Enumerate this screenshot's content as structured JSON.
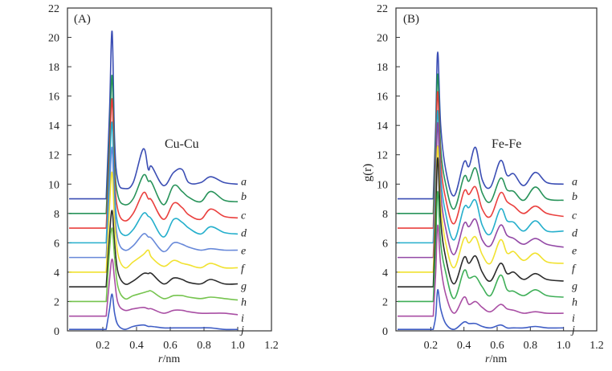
{
  "chart_data": [
    {
      "type": "line",
      "panel_label": "(A)",
      "annotation": "Cu-Cu",
      "xlabel_italic": "r",
      "xlabel_unit": "/nm",
      "ylabel": "",
      "xlim": [
        0,
        1.2
      ],
      "ylim": [
        0,
        22
      ],
      "xticks": [
        "0.2",
        "0.4",
        "0.6",
        "0.8",
        "1.0",
        "1.2"
      ],
      "xtick_values": [
        0.2,
        0.4,
        0.6,
        0.8,
        1.0,
        1.2
      ],
      "yticks": [
        "0",
        "2",
        "4",
        "6",
        "8",
        "10",
        "12",
        "14",
        "16",
        "18",
        "20",
        "22"
      ],
      "grid": false,
      "x": [
        0,
        0.22,
        0.24,
        0.255,
        0.27,
        0.29,
        0.33,
        0.38,
        0.44,
        0.47,
        0.49,
        0.56,
        0.62,
        0.67,
        0.71,
        0.78,
        0.84,
        0.92,
        1.0
      ],
      "series": [
        {
          "name": "a",
          "color": "#2a3fae",
          "values": [
            9,
            9,
            15,
            20.4,
            13,
            10.2,
            9.7,
            10.1,
            12.4,
            11.0,
            11.2,
            9.9,
            10.8,
            11.0,
            10.1,
            10.1,
            10.5,
            10.1,
            10.0
          ]
        },
        {
          "name": "b",
          "color": "#168a4c",
          "values": [
            8,
            8,
            13,
            17.4,
            11.5,
            9.2,
            8.6,
            9.0,
            10.6,
            10.2,
            10.1,
            8.6,
            9.9,
            9.5,
            9.1,
            8.8,
            9.5,
            8.9,
            8.8
          ]
        },
        {
          "name": "c",
          "color": "#e8302e",
          "values": [
            7,
            7,
            12,
            15.8,
            10.5,
            8.2,
            7.5,
            8.0,
            9.4,
            9.0,
            8.9,
            7.6,
            8.7,
            8.4,
            7.9,
            7.6,
            8.3,
            7.8,
            7.7
          ]
        },
        {
          "name": "d",
          "color": "#12a8c8",
          "values": [
            6,
            6,
            11,
            14.2,
            9.5,
            7.2,
            6.5,
            6.9,
            8.0,
            7.8,
            7.6,
            6.4,
            7.6,
            7.4,
            7.0,
            6.6,
            7.1,
            6.7,
            6.6
          ]
        },
        {
          "name": "e",
          "color": "#5b7fd6",
          "values": [
            5,
            5,
            9.5,
            12.5,
            8.5,
            6.2,
            5.5,
            5.8,
            6.6,
            6.4,
            6.3,
            5.4,
            6.0,
            5.9,
            5.7,
            5.5,
            5.6,
            5.5,
            5.5
          ]
        },
        {
          "name": "f",
          "color": "#f0e020",
          "values": [
            4,
            4,
            8.5,
            10.8,
            7.5,
            5.2,
            4.3,
            4.7,
            5.2,
            5.5,
            5.0,
            4.4,
            4.8,
            4.6,
            4.5,
            4.3,
            4.6,
            4.3,
            4.3
          ]
        },
        {
          "name": "g",
          "color": "#1a1a1a",
          "values": [
            3,
            3,
            6.5,
            8.2,
            6.0,
            4.0,
            3.2,
            3.4,
            3.9,
            3.9,
            3.9,
            3.2,
            3.6,
            3.5,
            3.3,
            3.2,
            3.5,
            3.2,
            3.2
          ]
        },
        {
          "name": "h",
          "color": "#6abf40",
          "values": [
            2,
            2,
            5.5,
            7.0,
            5.0,
            3.0,
            2.2,
            2.4,
            2.6,
            2.7,
            2.7,
            2.2,
            2.4,
            2.4,
            2.3,
            2.2,
            2.3,
            2.2,
            2.1
          ]
        },
        {
          "name": "i",
          "color": "#a2409c",
          "values": [
            1,
            1,
            3.5,
            4.9,
            3.5,
            1.9,
            1.4,
            1.5,
            1.6,
            1.5,
            1.5,
            1.2,
            1.4,
            1.4,
            1.3,
            1.2,
            1.2,
            1.2,
            1.1
          ]
        },
        {
          "name": "j",
          "color": "#3050c0",
          "values": [
            0.1,
            0.1,
            1.5,
            2.5,
            1.2,
            0.4,
            0.1,
            0.3,
            0.4,
            0.3,
            0.3,
            0.2,
            0.2,
            0.2,
            0.2,
            0.2,
            0.2,
            0.1,
            0.1
          ]
        }
      ]
    },
    {
      "type": "line",
      "panel_label": "(B)",
      "annotation": "Fe-Fe",
      "xlabel_italic": "r",
      "xlabel_unit": "/nm",
      "ylabel": "g(r)",
      "xlim": [
        0,
        1.2
      ],
      "ylim": [
        0,
        22
      ],
      "xticks": [
        "0.2",
        "0.4",
        "0.6",
        "0.8",
        "1.0",
        "1.2"
      ],
      "xtick_values": [
        0.2,
        0.4,
        0.6,
        0.8,
        1.0,
        1.2
      ],
      "yticks": [
        "0",
        "2",
        "4",
        "6",
        "8",
        "10",
        "12",
        "14",
        "16",
        "18",
        "20",
        "22"
      ],
      "grid": false,
      "x": [
        0,
        0.215,
        0.23,
        0.242,
        0.26,
        0.29,
        0.34,
        0.4,
        0.43,
        0.47,
        0.51,
        0.56,
        0.62,
        0.66,
        0.7,
        0.76,
        0.83,
        0.9,
        1.0
      ],
      "series": [
        {
          "name": "a",
          "color": "#2a3fae",
          "values": [
            9,
            9,
            14,
            19,
            14,
            11,
            9.2,
            11.5,
            11.2,
            12.5,
            10.3,
            9.8,
            11.6,
            10.6,
            10.7,
            9.9,
            10.8,
            10.1,
            10.0
          ]
        },
        {
          "name": "b",
          "color": "#168a4c",
          "values": [
            8,
            8,
            13,
            17.5,
            12.5,
            10,
            8.3,
            10.5,
            10.2,
            11.1,
            9.4,
            8.8,
            10.4,
            9.6,
            9.5,
            8.9,
            9.8,
            9.0,
            8.9
          ]
        },
        {
          "name": "c",
          "color": "#e8302e",
          "values": [
            7,
            7,
            12,
            16.3,
            11.5,
            9,
            7.3,
            9.5,
            9.3,
            9.8,
            8.3,
            7.8,
            9.4,
            8.8,
            8.5,
            8.0,
            8.5,
            8.0,
            7.8
          ]
        },
        {
          "name": "d",
          "color": "#12a8c8",
          "values": [
            6,
            6,
            11,
            15,
            10.5,
            8,
            6.2,
            8.4,
            8.4,
            8.9,
            7.2,
            6.6,
            8.3,
            7.5,
            7.4,
            6.8,
            7.5,
            6.8,
            6.8
          ]
        },
        {
          "name": "e",
          "color": "#8a3a9e",
          "values": [
            5,
            5,
            9.5,
            14.2,
            9.5,
            7,
            5.2,
            7.3,
            7.1,
            7.6,
            6.2,
            5.8,
            7.2,
            6.5,
            6.3,
            5.9,
            6.3,
            5.9,
            5.7
          ]
        },
        {
          "name": "f",
          "color": "#f0e020",
          "values": [
            4,
            4,
            8.5,
            12.6,
            8.5,
            6,
            4.3,
            6.3,
            6.0,
            6.4,
            5.2,
            4.6,
            6.2,
            5.3,
            5.4,
            4.8,
            5.3,
            4.7,
            4.6
          ]
        },
        {
          "name": "g",
          "color": "#1a1a1a",
          "values": [
            3,
            3,
            7.5,
            11.8,
            7.5,
            5,
            3.2,
            5.0,
            4.6,
            5.1,
            4.0,
            3.4,
            4.6,
            3.9,
            4.0,
            3.5,
            3.9,
            3.5,
            3.4
          ]
        },
        {
          "name": "h",
          "color": "#2fa84a",
          "values": [
            2,
            2,
            6,
            9.5,
            6,
            4,
            2.2,
            4.1,
            3.6,
            3.7,
            3.0,
            2.4,
            3.8,
            2.8,
            2.7,
            2.4,
            2.8,
            2.4,
            2.3
          ]
        },
        {
          "name": "i",
          "color": "#a2409c",
          "values": [
            1,
            1,
            4,
            7.2,
            4.5,
            2.5,
            1.2,
            2.3,
            1.8,
            2.0,
            1.6,
            1.3,
            1.8,
            1.5,
            1.4,
            1.2,
            1.3,
            1.2,
            1.2
          ]
        },
        {
          "name": "j",
          "color": "#3050c0",
          "values": [
            0.1,
            0.1,
            1,
            2.8,
            1.5,
            0.5,
            0.1,
            0.6,
            0.5,
            0.5,
            0.3,
            0.2,
            0.4,
            0.2,
            0.2,
            0.2,
            0.3,
            0.2,
            0.2
          ]
        }
      ]
    }
  ]
}
